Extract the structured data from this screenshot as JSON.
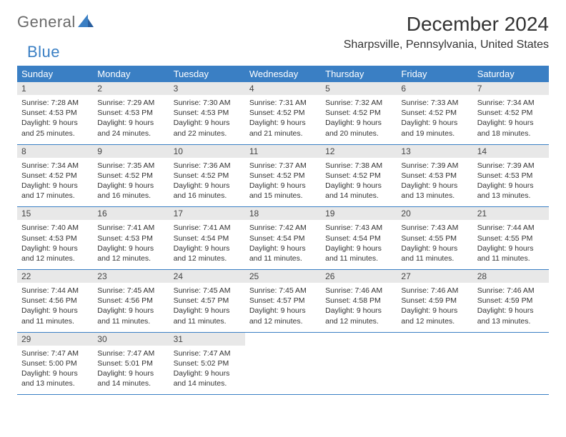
{
  "brand": {
    "part1": "General",
    "part2": "Blue"
  },
  "title": "December 2024",
  "location": "Sharpsville, Pennsylvania, United States",
  "colors": {
    "header_bg": "#3a7fc4",
    "header_text": "#ffffff",
    "daynum_bg": "#e8e8e8",
    "rule": "#3a7fc4",
    "text": "#333333",
    "logo_gray": "#6a6a6a",
    "logo_blue": "#3a7fc4",
    "background": "#ffffff"
  },
  "typography": {
    "month_title_fontsize": 28,
    "location_fontsize": 16,
    "dayheader_fontsize": 13,
    "daynum_fontsize": 12,
    "body_fontsize": 10.5,
    "font_family": "Arial"
  },
  "layout": {
    "columns": 7,
    "rows": 5
  },
  "day_headers": [
    "Sunday",
    "Monday",
    "Tuesday",
    "Wednesday",
    "Thursday",
    "Friday",
    "Saturday"
  ],
  "days": [
    {
      "n": "1",
      "sunrise": "7:28 AM",
      "sunset": "4:53 PM",
      "daylight": "9 hours and 25 minutes."
    },
    {
      "n": "2",
      "sunrise": "7:29 AM",
      "sunset": "4:53 PM",
      "daylight": "9 hours and 24 minutes."
    },
    {
      "n": "3",
      "sunrise": "7:30 AM",
      "sunset": "4:53 PM",
      "daylight": "9 hours and 22 minutes."
    },
    {
      "n": "4",
      "sunrise": "7:31 AM",
      "sunset": "4:52 PM",
      "daylight": "9 hours and 21 minutes."
    },
    {
      "n": "5",
      "sunrise": "7:32 AM",
      "sunset": "4:52 PM",
      "daylight": "9 hours and 20 minutes."
    },
    {
      "n": "6",
      "sunrise": "7:33 AM",
      "sunset": "4:52 PM",
      "daylight": "9 hours and 19 minutes."
    },
    {
      "n": "7",
      "sunrise": "7:34 AM",
      "sunset": "4:52 PM",
      "daylight": "9 hours and 18 minutes."
    },
    {
      "n": "8",
      "sunrise": "7:34 AM",
      "sunset": "4:52 PM",
      "daylight": "9 hours and 17 minutes."
    },
    {
      "n": "9",
      "sunrise": "7:35 AM",
      "sunset": "4:52 PM",
      "daylight": "9 hours and 16 minutes."
    },
    {
      "n": "10",
      "sunrise": "7:36 AM",
      "sunset": "4:52 PM",
      "daylight": "9 hours and 16 minutes."
    },
    {
      "n": "11",
      "sunrise": "7:37 AM",
      "sunset": "4:52 PM",
      "daylight": "9 hours and 15 minutes."
    },
    {
      "n": "12",
      "sunrise": "7:38 AM",
      "sunset": "4:52 PM",
      "daylight": "9 hours and 14 minutes."
    },
    {
      "n": "13",
      "sunrise": "7:39 AM",
      "sunset": "4:53 PM",
      "daylight": "9 hours and 13 minutes."
    },
    {
      "n": "14",
      "sunrise": "7:39 AM",
      "sunset": "4:53 PM",
      "daylight": "9 hours and 13 minutes."
    },
    {
      "n": "15",
      "sunrise": "7:40 AM",
      "sunset": "4:53 PM",
      "daylight": "9 hours and 12 minutes."
    },
    {
      "n": "16",
      "sunrise": "7:41 AM",
      "sunset": "4:53 PM",
      "daylight": "9 hours and 12 minutes."
    },
    {
      "n": "17",
      "sunrise": "7:41 AM",
      "sunset": "4:54 PM",
      "daylight": "9 hours and 12 minutes."
    },
    {
      "n": "18",
      "sunrise": "7:42 AM",
      "sunset": "4:54 PM",
      "daylight": "9 hours and 11 minutes."
    },
    {
      "n": "19",
      "sunrise": "7:43 AM",
      "sunset": "4:54 PM",
      "daylight": "9 hours and 11 minutes."
    },
    {
      "n": "20",
      "sunrise": "7:43 AM",
      "sunset": "4:55 PM",
      "daylight": "9 hours and 11 minutes."
    },
    {
      "n": "21",
      "sunrise": "7:44 AM",
      "sunset": "4:55 PM",
      "daylight": "9 hours and 11 minutes."
    },
    {
      "n": "22",
      "sunrise": "7:44 AM",
      "sunset": "4:56 PM",
      "daylight": "9 hours and 11 minutes."
    },
    {
      "n": "23",
      "sunrise": "7:45 AM",
      "sunset": "4:56 PM",
      "daylight": "9 hours and 11 minutes."
    },
    {
      "n": "24",
      "sunrise": "7:45 AM",
      "sunset": "4:57 PM",
      "daylight": "9 hours and 11 minutes."
    },
    {
      "n": "25",
      "sunrise": "7:45 AM",
      "sunset": "4:57 PM",
      "daylight": "9 hours and 12 minutes."
    },
    {
      "n": "26",
      "sunrise": "7:46 AM",
      "sunset": "4:58 PM",
      "daylight": "9 hours and 12 minutes."
    },
    {
      "n": "27",
      "sunrise": "7:46 AM",
      "sunset": "4:59 PM",
      "daylight": "9 hours and 12 minutes."
    },
    {
      "n": "28",
      "sunrise": "7:46 AM",
      "sunset": "4:59 PM",
      "daylight": "9 hours and 13 minutes."
    },
    {
      "n": "29",
      "sunrise": "7:47 AM",
      "sunset": "5:00 PM",
      "daylight": "9 hours and 13 minutes."
    },
    {
      "n": "30",
      "sunrise": "7:47 AM",
      "sunset": "5:01 PM",
      "daylight": "9 hours and 14 minutes."
    },
    {
      "n": "31",
      "sunrise": "7:47 AM",
      "sunset": "5:02 PM",
      "daylight": "9 hours and 14 minutes."
    }
  ],
  "labels": {
    "sunrise": "Sunrise: ",
    "sunset": "Sunset: ",
    "daylight": "Daylight: "
  }
}
